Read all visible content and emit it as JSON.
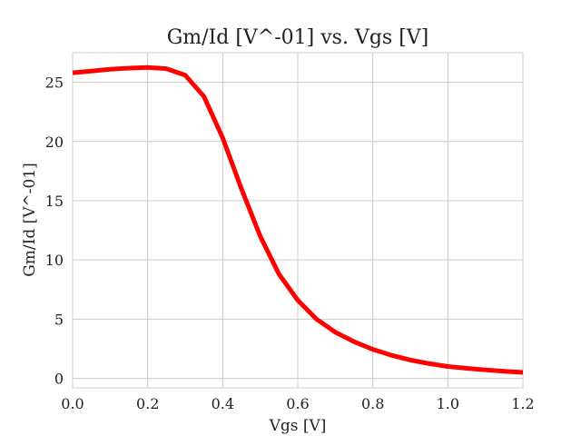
{
  "chart_data": {
    "type": "line",
    "title": "Gm/Id [V^-01] vs. Vgs [V]",
    "xlabel": "Vgs [V]",
    "ylabel": "Gm/Id [V^-01]",
    "xlim": [
      0.0,
      1.2
    ],
    "ylim": [
      -0.8,
      27.5
    ],
    "xticks": [
      0.0,
      0.2,
      0.4,
      0.6,
      0.8,
      1.0,
      1.2
    ],
    "xtick_labels": [
      "0.0",
      "0.2",
      "0.4",
      "0.6",
      "0.8",
      "1.0",
      "1.2"
    ],
    "yticks": [
      0,
      5,
      10,
      15,
      20,
      25
    ],
    "ytick_labels": [
      "0",
      "5",
      "10",
      "15",
      "20",
      "25"
    ],
    "grid": true,
    "series": [
      {
        "color": "#ff0000",
        "x": [
          0.0,
          0.05,
          0.1,
          0.15,
          0.2,
          0.25,
          0.3,
          0.35,
          0.4,
          0.45,
          0.5,
          0.55,
          0.6,
          0.65,
          0.7,
          0.75,
          0.8,
          0.85,
          0.9,
          0.95,
          1.0,
          1.05,
          1.1,
          1.15,
          1.2
        ],
        "y": [
          25.8,
          25.95,
          26.1,
          26.2,
          26.25,
          26.15,
          25.6,
          23.8,
          20.3,
          16.0,
          12.0,
          8.8,
          6.6,
          5.0,
          3.9,
          3.1,
          2.45,
          1.95,
          1.55,
          1.25,
          1.0,
          0.85,
          0.72,
          0.6,
          0.5
        ]
      }
    ]
  }
}
